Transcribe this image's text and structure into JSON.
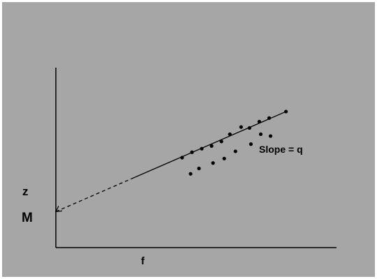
{
  "colors": {
    "background": "#a6a6a6",
    "ink": "#000000",
    "border": "#ffffff"
  },
  "chart_data": {
    "type": "scatter",
    "title": "",
    "xlabel": "f",
    "ylabel": "z",
    "intercept_label": "M",
    "annotation": "Slope = q",
    "xlim": [
      0,
      100
    ],
    "ylim": [
      0,
      100
    ],
    "grid": false,
    "points": [
      {
        "x": 45.0,
        "y": 50.0
      },
      {
        "x": 48.5,
        "y": 53.0
      },
      {
        "x": 52.0,
        "y": 55.0
      },
      {
        "x": 55.5,
        "y": 56.5
      },
      {
        "x": 59.0,
        "y": 59.0
      },
      {
        "x": 62.0,
        "y": 63.0
      },
      {
        "x": 66.0,
        "y": 67.0
      },
      {
        "x": 69.0,
        "y": 66.5
      },
      {
        "x": 73.0,
        "y": 63.0
      },
      {
        "x": 76.5,
        "y": 62.0
      },
      {
        "x": 48.0,
        "y": 41.0
      },
      {
        "x": 51.0,
        "y": 44.0
      },
      {
        "x": 56.0,
        "y": 47.0
      },
      {
        "x": 60.0,
        "y": 49.5
      },
      {
        "x": 64.0,
        "y": 53.5
      },
      {
        "x": 69.5,
        "y": 57.5
      },
      {
        "x": 72.5,
        "y": 70.0
      },
      {
        "x": 76.0,
        "y": 72.0
      }
    ],
    "fit_line": {
      "intercept": 20,
      "slope": 0.678,
      "solid_from_x": 27,
      "x_end": 82
    }
  }
}
